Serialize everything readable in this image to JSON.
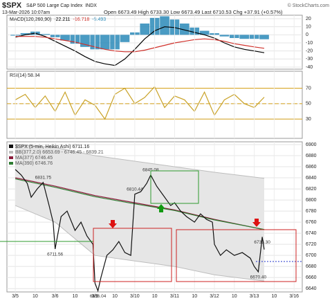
{
  "header": {
    "symbol": "$SPX",
    "name": "S&P 500 Large Cap Index",
    "exchange": "INDX",
    "date": "13-Mar-2026 10:07am",
    "quote": "Open 6673.49 High 6733.30 Low 6673.49 Last 6710.53 Chg +37.91 (+0.57%)",
    "credit": "© StockCharts.com"
  },
  "chart_data": [
    {
      "type": "line",
      "legend_label": "MACD(120,260,90)",
      "xlim": [
        -0.42,
        14.41
      ],
      "ylim": [
        -42.6,
        24.3
      ],
      "yticks": [
        20,
        10,
        0,
        -10,
        -20,
        -30,
        -40
      ],
      "series": [
        {
          "name": "-5.493",
          "kind": "bar",
          "color": "#2a8ab8",
          "x": [
            0,
            0.5,
            1,
            1.5,
            2,
            2.5,
            3,
            3.5,
            4,
            4.5,
            5,
            5.5,
            6,
            6.5,
            7,
            7.5,
            8,
            8.5,
            9,
            9.5,
            10,
            10.5,
            11,
            11.5,
            12,
            12.5
          ],
          "values": [
            -1,
            2,
            4,
            1,
            -3,
            -7,
            -11,
            -15,
            -18,
            -18,
            -18,
            -9,
            3,
            14,
            21,
            23,
            19,
            14,
            9,
            5,
            2,
            -2,
            -4,
            -5,
            -5,
            -5.493
          ]
        },
        {
          "name": "-22.211",
          "color": "#000000",
          "x": [
            0,
            0.5,
            1,
            1.5,
            2,
            2.5,
            3,
            3.5,
            4,
            4.5,
            5,
            5.5,
            6,
            6.5,
            7,
            7.5,
            8,
            8.5,
            9,
            9.5,
            10,
            10.5,
            11,
            11.5,
            12,
            12.5
          ],
          "values": [
            -3,
            0,
            2,
            -2,
            -8,
            -14,
            -20,
            -27,
            -33,
            -36,
            -38,
            -30,
            -18,
            -5,
            5,
            10,
            9,
            6,
            3,
            0,
            -4,
            -10,
            -15,
            -18,
            -20,
            -22.211
          ]
        },
        {
          "name": "-16.718",
          "color": "#d0302a",
          "x": [
            0,
            0.5,
            1,
            1.5,
            2,
            2.5,
            3,
            3.5,
            4,
            4.5,
            5,
            5.5,
            6,
            6.5,
            7,
            7.5,
            8,
            8.5,
            9,
            9.5,
            10,
            10.5,
            11,
            11.5,
            12,
            12.5
          ],
          "values": [
            -2,
            -2,
            -2,
            -3,
            -5,
            -7,
            -9,
            -12,
            -15,
            -18,
            -20,
            -21,
            -21,
            -19,
            -16,
            -13,
            -10,
            -8,
            -6,
            -5,
            -6,
            -8,
            -11,
            -13,
            -15,
            -16.718
          ]
        }
      ]
    },
    {
      "type": "line",
      "legend_label": "RSI(14) 58.34",
      "xlim": [
        -0.42,
        14.41
      ],
      "ylim": [
        5,
        92
      ],
      "yticks": [
        30,
        50,
        70
      ],
      "reference_lines": [
        70,
        50,
        30
      ],
      "reference_color": "#d4a017",
      "series": [
        {
          "color": "#c9a227",
          "x": [
            0,
            0.5,
            1,
            1.5,
            2,
            2.5,
            3,
            3.5,
            4,
            4.5,
            5,
            5.5,
            6,
            6.5,
            7,
            7.5,
            8,
            8.5,
            9,
            9.5,
            10,
            10.5,
            11,
            11.5,
            12,
            12.5
          ],
          "values": [
            55,
            62,
            45,
            60,
            40,
            65,
            35,
            55,
            48,
            30,
            62,
            70,
            50,
            58,
            72,
            45,
            60,
            55,
            40,
            65,
            35,
            55,
            62,
            50,
            45,
            58.34
          ]
        }
      ]
    },
    {
      "type": "line",
      "title": "$SPX (5-min, Heikin Ashi) 6711.16",
      "xlim": [
        -0.42,
        14.41
      ],
      "ylim": [
        6634,
        6905
      ],
      "yticks": [
        6640,
        6660,
        6680,
        6700,
        6720,
        6740,
        6760,
        6780,
        6800,
        6820,
        6840,
        6860,
        6880,
        6900
      ],
      "xticks": [
        {
          "value": 0,
          "label": "3/5"
        },
        {
          "value": 1,
          "label": "10"
        },
        {
          "value": 2,
          "label": "3/6"
        },
        {
          "value": 3,
          "label": "10"
        },
        {
          "value": 4,
          "label": "3/9"
        },
        {
          "value": 5,
          "label": "10"
        },
        {
          "value": 6,
          "label": "3/10"
        },
        {
          "value": 7,
          "label": "10"
        },
        {
          "value": 8,
          "label": "3/11"
        },
        {
          "value": 9,
          "label": "10"
        },
        {
          "value": 10,
          "label": "3/12"
        },
        {
          "value": 11,
          "label": "10"
        },
        {
          "value": 12,
          "label": "3/13"
        },
        {
          "value": 13,
          "label": "10"
        },
        {
          "value": 14,
          "label": "3/16"
        }
      ],
      "series": [
        {
          "name": "BB(377,2.0) 6653.69 - 6746.45 - 6839.21",
          "kind": "band",
          "color": "#bdbdbd",
          "x": [
            0,
            2,
            4,
            6,
            8,
            10,
            12.5
          ],
          "upper": [
            6900,
            6895,
            6880,
            6870,
            6860,
            6850,
            6839.21
          ],
          "lower": [
            6790,
            6760,
            6700,
            6690,
            6680,
            6665,
            6653.69
          ]
        },
        {
          "name": "MA(377) 6746.45",
          "color": "#8b1a3a",
          "x": [
            0,
            2,
            4,
            6,
            8,
            10,
            12.5
          ],
          "values": [
            6840,
            6825,
            6808,
            6795,
            6782,
            6765,
            6746.45
          ]
        },
        {
          "name": "MA(390) 6746.76",
          "color": "#2e7d32",
          "x": [
            0,
            2,
            4,
            6,
            8,
            10,
            12.5
          ],
          "values": [
            6838,
            6823,
            6806,
            6793,
            6781,
            6764,
            6746.76
          ]
        },
        {
          "color": "#111111",
          "x": [
            0,
            0.3,
            0.6,
            0.8,
            1.1,
            1.4,
            1.7,
            1.9,
            2.0,
            2.3,
            2.6,
            3.0,
            3.3,
            3.6,
            3.9,
            4.0,
            4.15,
            4.3,
            4.6,
            4.9,
            5.2,
            5.5,
            5.8,
            6.0,
            6.3,
            6.6,
            6.8,
            7.1,
            7.4,
            7.8,
            8.0,
            8.3,
            8.6,
            9.0,
            9.3,
            9.6,
            9.9,
            10.0,
            10.3,
            10.6,
            11.0,
            11.4,
            11.8,
            12.0,
            12.2,
            12.4,
            12.5
          ],
          "values": [
            6855,
            6845,
            6830,
            6805,
            6820,
            6831.75,
            6790,
            6760,
            6711.56,
            6770,
            6780,
            6745,
            6760,
            6735,
            6720,
            6650,
            6636.04,
            6660,
            6700,
            6710,
            6725,
            6705,
            6700,
            6810.44,
            6815,
            6830,
            6845.08,
            6825,
            6810,
            6790,
            6795,
            6780,
            6770,
            6760,
            6775,
            6765,
            6760,
            6720,
            6700,
            6710,
            6700,
            6705,
            6695,
            6680,
            6670.4,
            6733.3,
            6710.53
          ]
        }
      ],
      "annotations": [
        {
          "x": 1.4,
          "value": 6831.75
        },
        {
          "x": 2.0,
          "value": 6711.56
        },
        {
          "x": 4.15,
          "value": 6636.04
        },
        {
          "x": 6.0,
          "value": 6810.44
        },
        {
          "x": 6.8,
          "value": 6845.08
        },
        {
          "x": 12.4,
          "value": 6733.3,
          "label": "6733.30"
        },
        {
          "x": 12.2,
          "value": 6670.4,
          "label": "6670.40"
        }
      ]
    }
  ]
}
